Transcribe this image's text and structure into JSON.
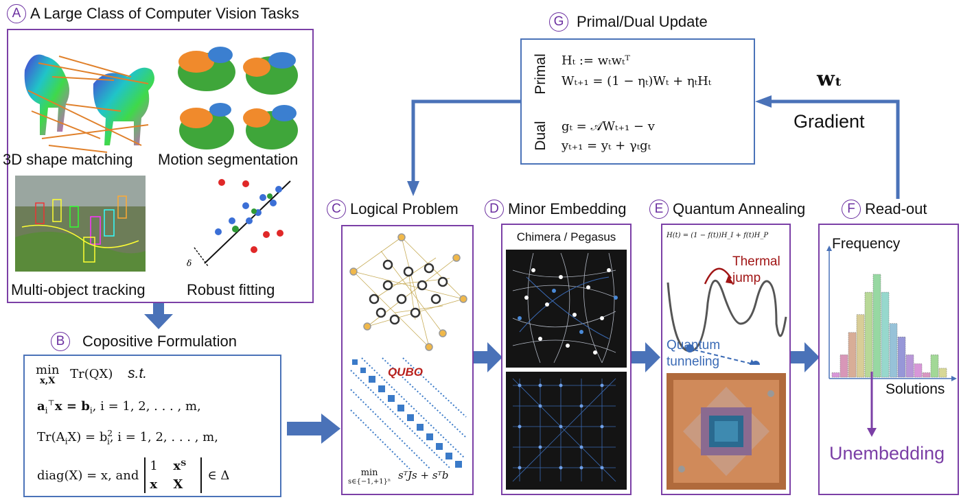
{
  "sections": {
    "A": {
      "letter": "A",
      "title": "A Large Class of Computer Vision Tasks",
      "tasks": [
        "3D shape matching",
        "Motion segmentation",
        "Multi-object tracking",
        "Robust fitting"
      ],
      "delta_symbol": "δ"
    },
    "B": {
      "letter": "B",
      "title": "Copositive Formulation",
      "lines": [
        "min Tr(QX)  s.t.",
        "aᵢᵀx = bᵢ,   i = 1, 2, . . . , m,",
        "Tr(AᵢX) = bᵢ²,   i = 1, 2, . . . , m,",
        "diag(X) = x, and [1 xᵀ; x X] ∈ Δ"
      ],
      "min_label": "min",
      "min_sub": "x,X",
      "objective": "Tr(QX)",
      "st": "s.t.",
      "l2": "a",
      "l2b": "x = b",
      "l2c": ",    i = 1, 2, . . . , m,",
      "l3": "Tr(A",
      "l3b": "X) = b",
      "l3c": ",    i = 1, 2, . . . , m,",
      "l4a": "diag(X) = x,  and",
      "l4m1": "1",
      "l4m2": "xᵀ",
      "l4m3": "x",
      "l4m4": "X",
      "l4b": "∈ Δ"
    },
    "C": {
      "letter": "C",
      "title": "Logical Problem",
      "qubo_label": "QUBO",
      "objective_min": "min",
      "objective_sub": "s∈{−1,+1}ⁿ",
      "objective": "sᵀJs + sᵀb"
    },
    "D": {
      "letter": "D",
      "title": "Minor Embedding",
      "subtitle": "Chimera / Pegasus"
    },
    "E": {
      "letter": "E",
      "title": "Quantum Annealing",
      "hamiltonian": "H(t) = (1 − f(t))H_I + f(t)H_P",
      "thermal": [
        "Thermal",
        "jump"
      ],
      "tunneling": [
        "Quantum",
        "tunneling"
      ]
    },
    "F": {
      "letter": "F",
      "title": "Read-out",
      "ylabel": "Frequency",
      "xlabel": "Solutions",
      "unembed": "Unembedding"
    },
    "G": {
      "letter": "G",
      "title": "Primal/Dual Update",
      "primal_label": "Primal",
      "dual_label": "Dual",
      "p1": "Hₜ := wₜwₜᵀ",
      "p2": "Wₜ₊₁ = (1 − ηₜ)Wₜ + ηₜHₜ",
      "d1": "gₜ = 𝒜Wₜ₊₁ − v",
      "d2": "yₜ₊₁ = yₜ + γₜgₜ"
    }
  },
  "wt_label": "wₜ",
  "gradient_label": "Gradient",
  "colors": {
    "accent": "#7b3fa6",
    "arrow": "#4a72b8",
    "unembed": "#7b3fa6",
    "thermal": "#a01515",
    "tunnel": "#3a6ab5"
  },
  "histogram": {
    "values": [
      2,
      10,
      20,
      28,
      38,
      46,
      38,
      24,
      18,
      10,
      6,
      2,
      10,
      4
    ]
  }
}
